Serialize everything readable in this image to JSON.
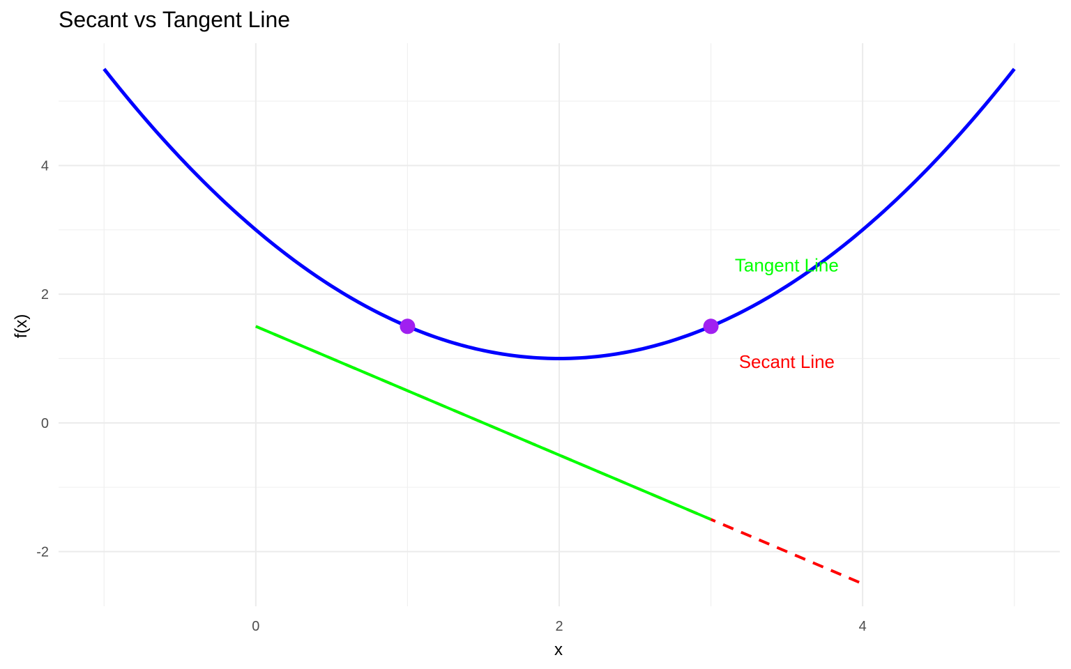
{
  "chart_data": {
    "type": "line",
    "title": "Secant vs Tangent Line",
    "xlabel": "x",
    "ylabel": "f(x)",
    "xlim": [
      -1.3,
      5.3
    ],
    "ylim": [
      -2.85,
      5.9
    ],
    "x_ticks": [
      0,
      2,
      4
    ],
    "x_tick_labels": [
      "0",
      "2",
      "4"
    ],
    "y_ticks": [
      -2,
      0,
      2,
      4
    ],
    "y_tick_labels": [
      "-2",
      "0",
      "2",
      "4"
    ],
    "x_minor_grid": [
      -1,
      1,
      3,
      5
    ],
    "y_minor_grid": [
      -1,
      1,
      3,
      5
    ],
    "grid": true,
    "series": [
      {
        "kind": "curve",
        "expression": "0.5*(x-2)^2 + 1",
        "x": [
          -1,
          -0.5,
          0,
          0.5,
          1,
          1.5,
          2,
          2.5,
          3,
          3.5,
          4,
          4.5,
          5
        ],
        "y": [
          5.5,
          4.125,
          3,
          2.125,
          1.5,
          1.125,
          1,
          1.125,
          1.5,
          2.125,
          3,
          4.125,
          5.5
        ],
        "color": "#0000ff",
        "style": "solid"
      },
      {
        "kind": "secant",
        "x": [
          0,
          4
        ],
        "y": [
          1.5,
          -2.5
        ],
        "color": "#ff0000",
        "style": "dashed"
      },
      {
        "kind": "tangent",
        "x": [
          0,
          3
        ],
        "y": [
          1.5,
          -1.5
        ],
        "color": "#00ff00",
        "style": "solid"
      }
    ],
    "points": {
      "x": [
        1,
        3
      ],
      "y": [
        1.5,
        1.5
      ],
      "color": "#a020f0"
    },
    "annotations": [
      {
        "text": "Tangent Line",
        "x": 3.5,
        "y": 2.45,
        "color": "#00ff00"
      },
      {
        "text": "Secant Line",
        "x": 3.5,
        "y": 0.95,
        "color": "#ff0000"
      }
    ]
  }
}
